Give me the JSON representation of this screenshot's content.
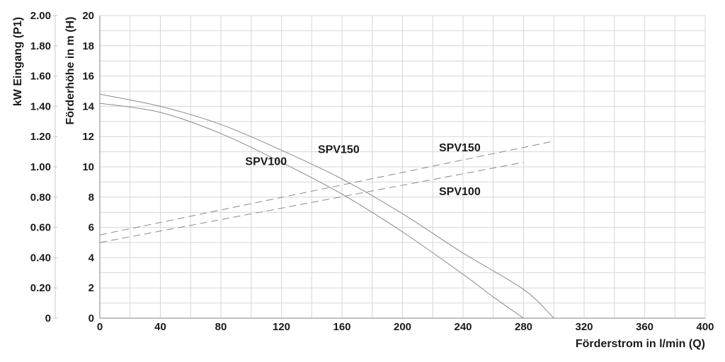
{
  "chart_data": {
    "type": "line",
    "title": "",
    "xlabel": "Förderstrom in l/min (Q)",
    "ylabel_head": "Förderhöhe in m (H)",
    "ylabel_power": "kW Eingang (P1)",
    "xlim": [
      0,
      400
    ],
    "ylim_head": [
      0,
      20
    ],
    "ylim_power": [
      0,
      2.0
    ],
    "x_ticks": [
      "0",
      "40",
      "80",
      "120",
      "160",
      "200",
      "240",
      "280",
      "320",
      "360",
      "400"
    ],
    "head_ticks": [
      "0",
      "2",
      "4",
      "6",
      "8",
      "10",
      "12",
      "14",
      "16",
      "18",
      "20"
    ],
    "power_ticks": [
      "0",
      "0.20",
      "0.40",
      "0.60",
      "0.80",
      "1.00",
      "1.20",
      "1.40",
      "1.60",
      "1.80",
      "2.00"
    ],
    "grid": true,
    "series": [
      {
        "name": "SPV100",
        "kind": "head",
        "style": "solid",
        "color": "#8a8a8a",
        "x": [
          0,
          40,
          80,
          120,
          160,
          200,
          240,
          260,
          280
        ],
        "y": [
          14.2,
          13.6,
          12.2,
          10.3,
          8.2,
          5.7,
          2.9,
          1.4,
          0
        ]
      },
      {
        "name": "SPV150",
        "kind": "head",
        "style": "solid",
        "color": "#8a8a8a",
        "x": [
          0,
          40,
          80,
          120,
          160,
          200,
          240,
          280,
          300
        ],
        "y": [
          14.8,
          14.0,
          12.8,
          11.1,
          9.2,
          6.9,
          4.3,
          1.9,
          0
        ]
      },
      {
        "name": "SPV100",
        "kind": "power",
        "style": "dashed",
        "color": "#8a8a8a",
        "x": [
          0,
          280
        ],
        "y": [
          0.5,
          1.03
        ]
      },
      {
        "name": "SPV150",
        "kind": "power",
        "style": "dashed",
        "color": "#8a8a8a",
        "x": [
          0,
          300
        ],
        "y": [
          0.55,
          1.17
        ]
      }
    ],
    "labels": [
      {
        "text": "SPV100",
        "x": 112,
        "y_head": 10.4
      },
      {
        "text": "SPV150",
        "x": 160,
        "y_head": 11.2
      },
      {
        "text": "SPV150",
        "x": 240,
        "y_head": 11.3
      },
      {
        "text": "SPV100",
        "x": 240,
        "y_head": 8.4
      }
    ]
  }
}
